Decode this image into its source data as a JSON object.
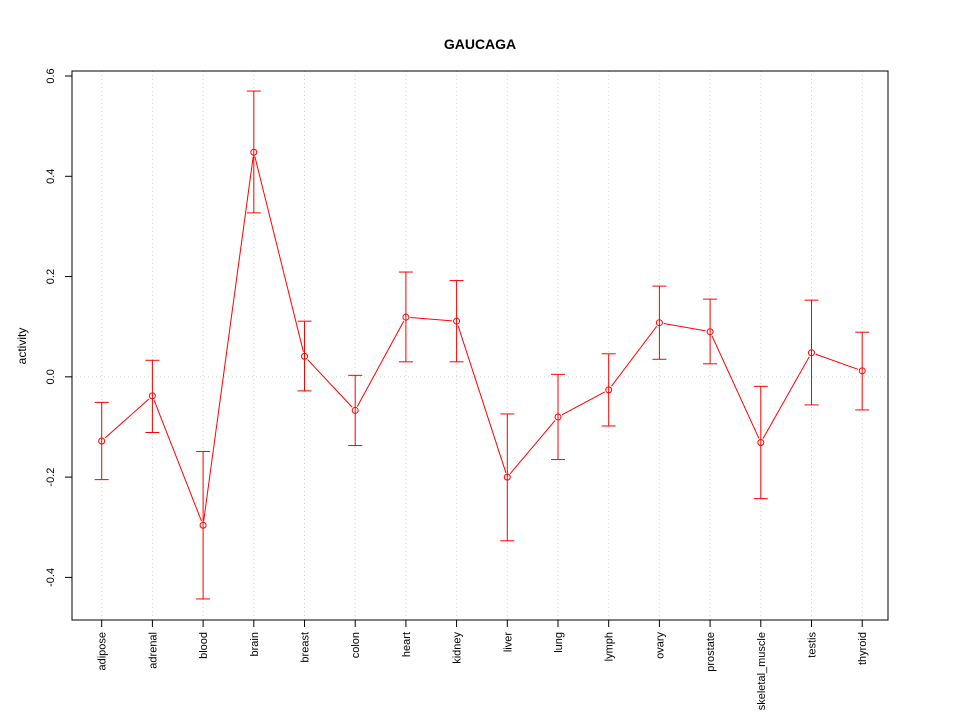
{
  "chart_data": {
    "type": "line",
    "title": "GAUCAGA",
    "xlabel": "",
    "ylabel": "activity",
    "ylim": [
      -0.485,
      0.61
    ],
    "yticks": [
      -0.4,
      -0.2,
      0.0,
      0.2,
      0.4,
      0.6
    ],
    "ytick_labels": [
      "-0.4",
      "-0.2",
      "0.0",
      "0.2",
      "0.4",
      "0.6"
    ],
    "grid": true,
    "categories": [
      "adipose",
      "adrenal",
      "blood",
      "brain",
      "breast",
      "colon",
      "heart",
      "kidney",
      "liver",
      "lung",
      "lymph",
      "ovary",
      "prostate",
      "skeletal_muscle",
      "testis",
      "thyroid"
    ],
    "series": [
      {
        "color": "#ff0000",
        "values": [
          -0.128,
          -0.038,
          -0.296,
          0.448,
          0.041,
          -0.067,
          0.119,
          0.111,
          -0.2,
          -0.08,
          -0.026,
          0.108,
          0.09,
          -0.131,
          0.048,
          0.012
        ],
        "upper": [
          -0.051,
          0.033,
          -0.149,
          0.57,
          0.111,
          0.003,
          0.209,
          0.192,
          -0.074,
          0.005,
          0.046,
          0.181,
          0.155,
          -0.019,
          0.153,
          0.089
        ],
        "lower": [
          -0.205,
          -0.111,
          -0.443,
          0.327,
          -0.028,
          -0.137,
          0.03,
          0.03,
          -0.327,
          -0.165,
          -0.098,
          0.035,
          0.026,
          -0.243,
          -0.056,
          -0.066
        ]
      }
    ]
  }
}
